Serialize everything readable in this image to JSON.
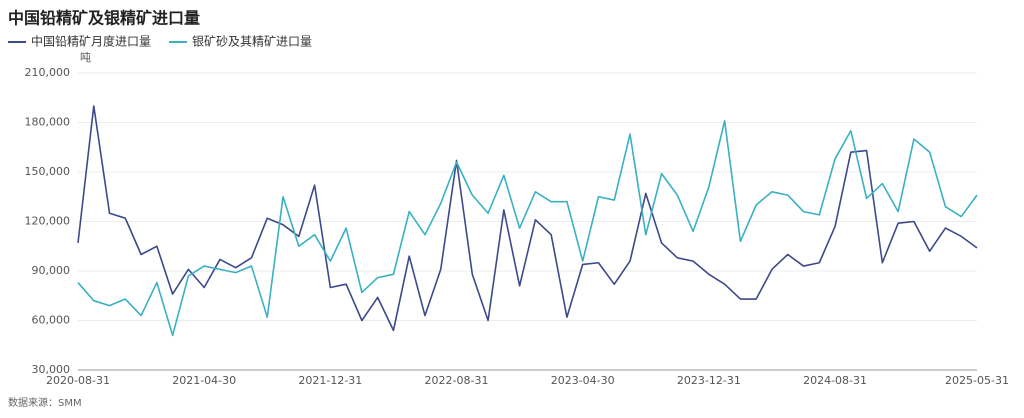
{
  "chart_data": {
    "type": "line",
    "title": "中国铅精矿及银精矿进口量",
    "y_unit": "吨",
    "source": "数据来源：SMM",
    "categories": [
      "2020-08-31",
      null,
      null,
      null,
      null,
      null,
      null,
      null,
      "2021-04-30",
      null,
      null,
      null,
      null,
      null,
      null,
      null,
      "2021-12-31",
      null,
      null,
      null,
      null,
      null,
      null,
      null,
      "2022-08-31",
      null,
      null,
      null,
      null,
      null,
      null,
      null,
      "2023-04-30",
      null,
      null,
      null,
      null,
      null,
      null,
      null,
      "2023-12-31",
      null,
      null,
      null,
      null,
      null,
      null,
      null,
      "2024-08-31",
      null,
      null,
      null,
      null,
      null,
      null,
      null,
      null,
      "2025-05-31"
    ],
    "series": [
      {
        "name": "中国铅精矿月度进口量",
        "color": "#3d4a8a",
        "values": [
          107000,
          190000,
          125000,
          122000,
          100000,
          105000,
          76000,
          91000,
          80000,
          97000,
          92000,
          98000,
          122000,
          118000,
          111000,
          142000,
          80000,
          82000,
          60000,
          74000,
          54000,
          99000,
          63000,
          91000,
          157000,
          88000,
          60000,
          127000,
          81000,
          121000,
          112000,
          62000,
          94000,
          95000,
          82000,
          96000,
          137000,
          107000,
          98000,
          96000,
          88000,
          82000,
          73000,
          73000,
          91000,
          100000,
          93000,
          95000,
          117000,
          162000,
          163000,
          95000,
          119000,
          120000,
          102000,
          116000,
          111000,
          104000
        ]
      },
      {
        "name": "银矿砂及其精矿进口量",
        "color": "#3ab0c3",
        "values": [
          83000,
          72000,
          69000,
          73000,
          63000,
          83000,
          51000,
          87000,
          93000,
          91000,
          89000,
          93000,
          62000,
          135000,
          105000,
          112000,
          96000,
          116000,
          77000,
          86000,
          88000,
          126000,
          112000,
          131000,
          156000,
          136000,
          125000,
          148000,
          116000,
          138000,
          132000,
          132000,
          96000,
          135000,
          133000,
          173000,
          112000,
          149000,
          136000,
          114000,
          141000,
          181000,
          108000,
          130000,
          138000,
          136000,
          126000,
          124000,
          158000,
          175000,
          134000,
          143000,
          126000,
          170000,
          162000,
          129000,
          123000,
          136000
        ]
      }
    ],
    "ylim": [
      30000,
      210000
    ],
    "yticks": [
      {
        "value": 30000,
        "label": "30,000"
      },
      {
        "value": 60000,
        "label": "60,000"
      },
      {
        "value": 90000,
        "label": "90,000"
      },
      {
        "value": 120000,
        "label": "120,000"
      },
      {
        "value": 150000,
        "label": "150,000"
      },
      {
        "value": 180000,
        "label": "180,000"
      },
      {
        "value": 210000,
        "label": "210,000"
      }
    ],
    "grid": true
  }
}
